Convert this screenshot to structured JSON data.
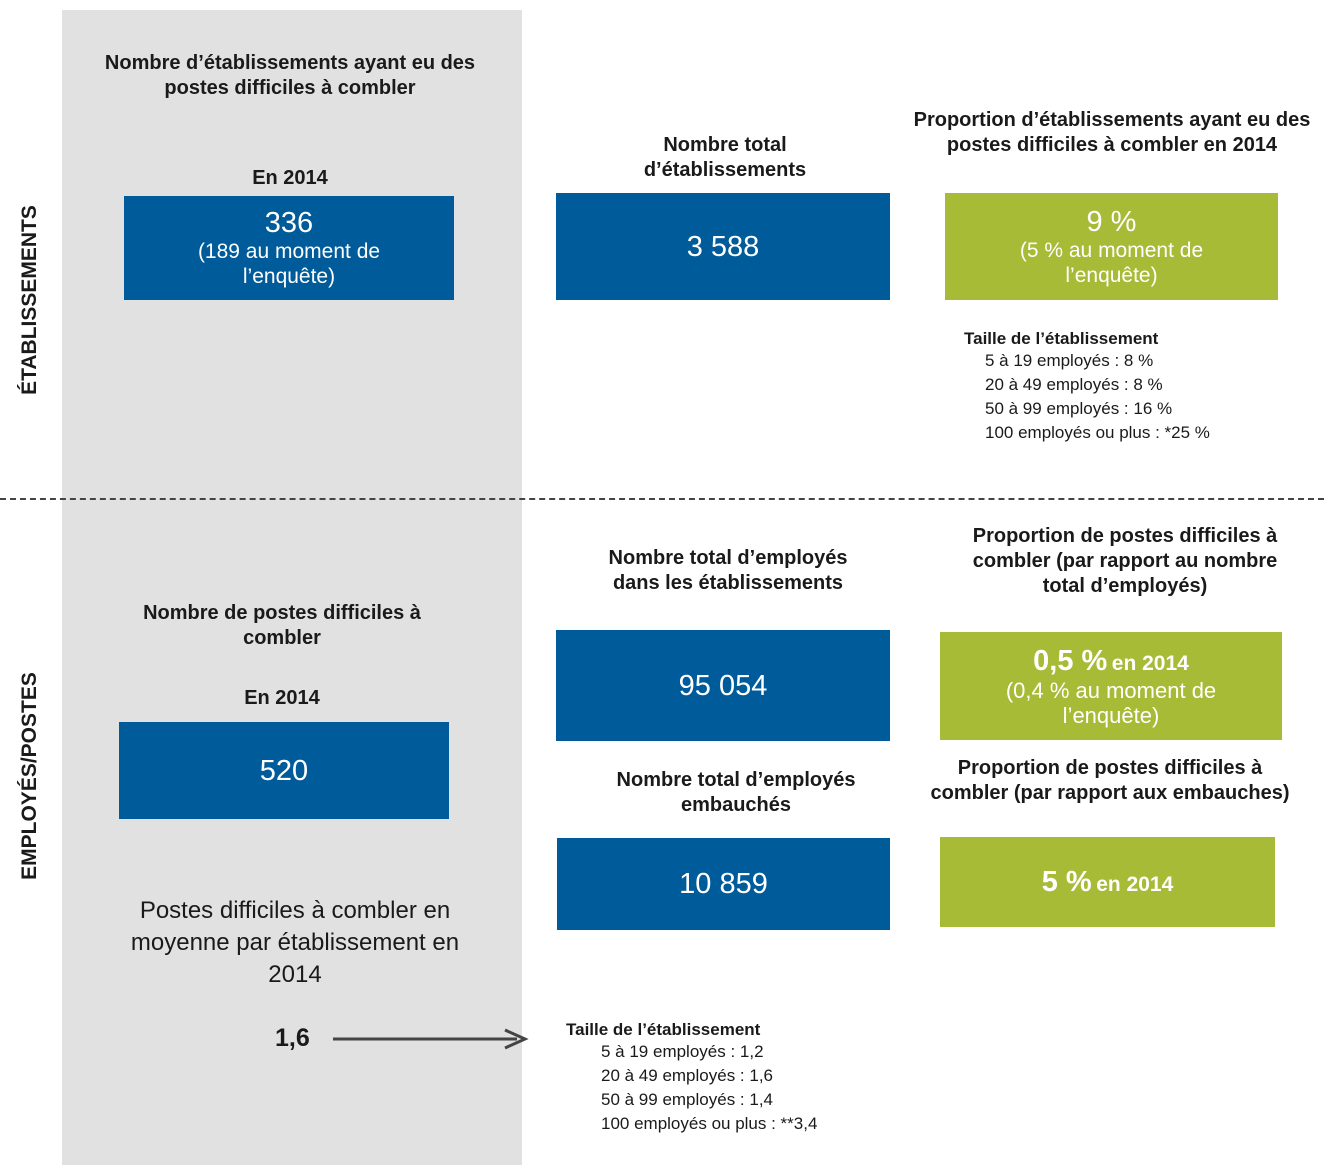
{
  "side_labels": {
    "top": "ÉTABLISSEMENTS",
    "bottom": "EMPLOYÉS/POSTES"
  },
  "establishments": {
    "hard_to_fill": {
      "heading": "Nombre d’établissements ayant eu des postes difficiles à combler",
      "year_label": "En 2014",
      "value": "336",
      "note": "(189 au moment de l’enquête)"
    },
    "total": {
      "heading": "Nombre total d’établissements",
      "value": "3 588"
    },
    "proportion": {
      "heading": "Proportion d’établissements ayant eu des postes difficiles à combler en 2014",
      "value": "9 %",
      "note": "(5 % au moment de l’enquête)"
    },
    "size_breakdown": {
      "title": "Taille de l’établissement",
      "items": [
        "5 à 19 employés : 8 %",
        "20 à 49 employés : 8 %",
        "50 à 99 employés : 16 %",
        "100 employés ou plus : *25 %"
      ]
    }
  },
  "employees": {
    "hard_to_fill_positions": {
      "heading": "Nombre de postes difficiles à combler",
      "year_label": "En 2014",
      "value": "520"
    },
    "total_employees": {
      "heading": "Nombre total d’employés dans les établissements",
      "value": "95 054"
    },
    "proportion_employees": {
      "heading": "Proportion de postes difficiles à combler (par rapport au nombre total d’employés)",
      "value": "0,5 %",
      "value_suffix": "en 2014",
      "note": "(0,4 % au moment de l’enquête)"
    },
    "total_hires": {
      "heading": "Nombre total d’employés embauchés",
      "value": "10 859"
    },
    "proportion_hires": {
      "heading": "Proportion de postes difficiles à combler (par rapport aux embauches)",
      "value": "5 %",
      "value_suffix": "en 2014"
    },
    "average": {
      "text": "Postes difficiles à combler en moyenne par établissement en 2014",
      "value": "1,6"
    },
    "size_breakdown": {
      "title": "Taille de l’établissement",
      "items": [
        "5 à 19 employés : 1,2",
        "20 à 49 employés : 1,6",
        "50 à 99 employés : 1,4",
        "100 employés ou plus : **3,4"
      ]
    }
  },
  "colors": {
    "blue": "#005b9a",
    "green": "#a7bb37",
    "grey": "#e1e1e1"
  }
}
